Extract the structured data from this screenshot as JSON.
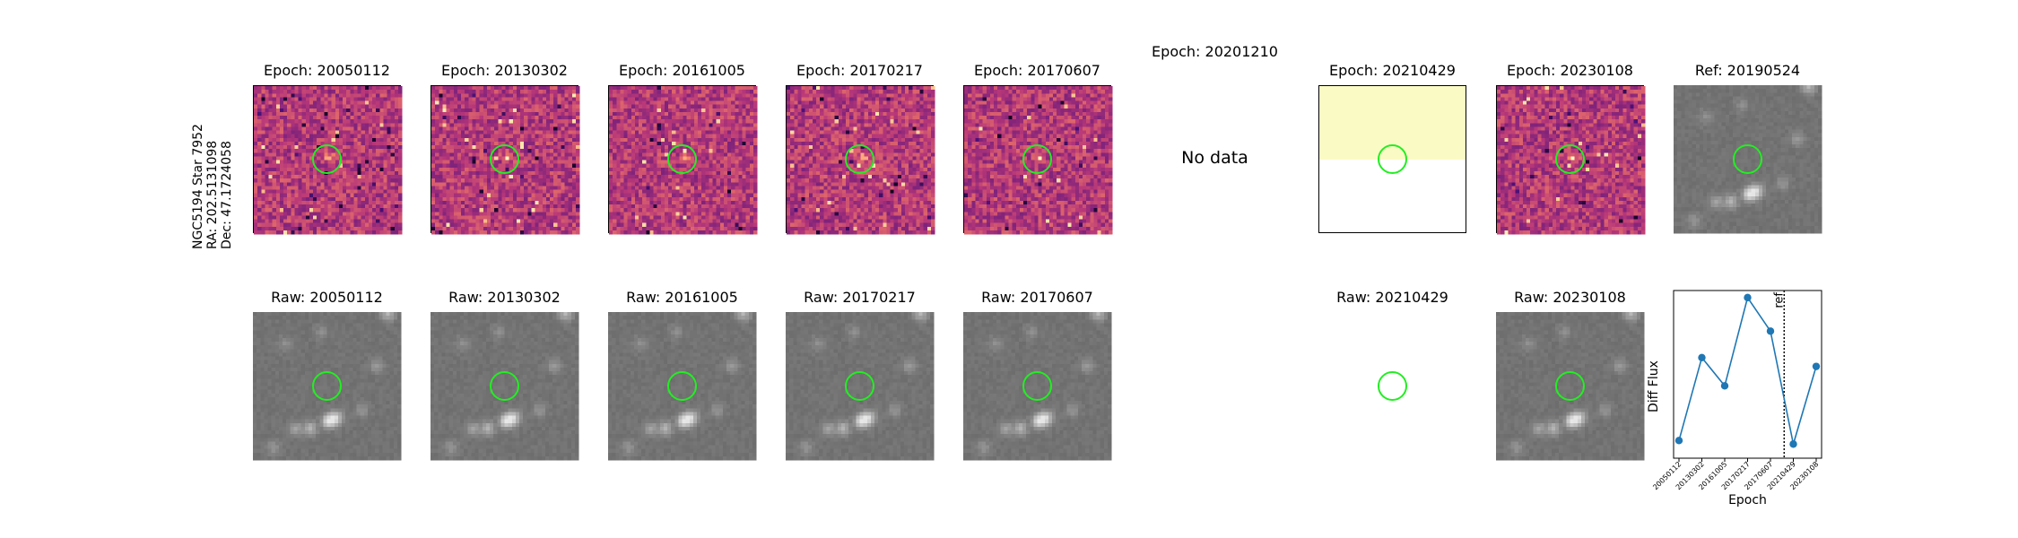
{
  "star": {
    "name": "NGC5194 Star 7952",
    "ra": "RA: 202.5131098",
    "dec": "Dec: 47.1724058"
  },
  "top_row": [
    {
      "title": "Epoch: 20050112",
      "kind": "diff",
      "seed": 11
    },
    {
      "title": "Epoch: 20130302",
      "kind": "diff",
      "seed": 23
    },
    {
      "title": "Epoch: 20161005",
      "kind": "diff",
      "seed": 37
    },
    {
      "title": "Epoch: 20170217",
      "kind": "diff",
      "seed": 41
    },
    {
      "title": "Epoch: 20170607",
      "kind": "diff",
      "seed": 53
    },
    {
      "title": "Epoch: 20201210",
      "kind": "nodata",
      "nodata_text": "No data"
    },
    {
      "title": "Epoch: 20210429",
      "kind": "partial"
    },
    {
      "title": "Epoch: 20230108",
      "kind": "diff",
      "seed": 67
    },
    {
      "title": "Ref: 20190524",
      "kind": "raw",
      "seed": 5
    }
  ],
  "bottom_row": [
    {
      "title": "Raw: 20050112",
      "kind": "raw",
      "seed": 5
    },
    {
      "title": "Raw: 20130302",
      "kind": "raw",
      "seed": 5
    },
    {
      "title": "Raw: 20161005",
      "kind": "raw",
      "seed": 5
    },
    {
      "title": "Raw: 20170217",
      "kind": "raw",
      "seed": 5
    },
    {
      "title": "Raw: 20170607",
      "kind": "raw",
      "seed": 5
    },
    {
      "title": "",
      "kind": "empty"
    },
    {
      "title": "Raw: 20210429",
      "kind": "blank"
    },
    {
      "title": "Raw: 20230108",
      "kind": "raw",
      "seed": 5
    }
  ],
  "colors": {
    "aperture": "#22ee22",
    "line": "#1f77b4",
    "partial_fill": "#fafac4"
  },
  "chart_data": {
    "type": "line",
    "x": [
      "20050112",
      "20130302",
      "20161005",
      "20170217",
      "20170607",
      "20210429",
      "20230108"
    ],
    "values": [
      0.0,
      0.47,
      0.31,
      0.81,
      0.62,
      -0.02,
      0.42
    ],
    "xlabel": "Epoch",
    "ylabel": "Diff Flux",
    "ref_label": "ref",
    "ref_position_between": [
      "20170607",
      "20210429"
    ],
    "ref_fraction": 0.6,
    "ylim": [
      -0.1,
      0.85
    ],
    "grid": false
  }
}
